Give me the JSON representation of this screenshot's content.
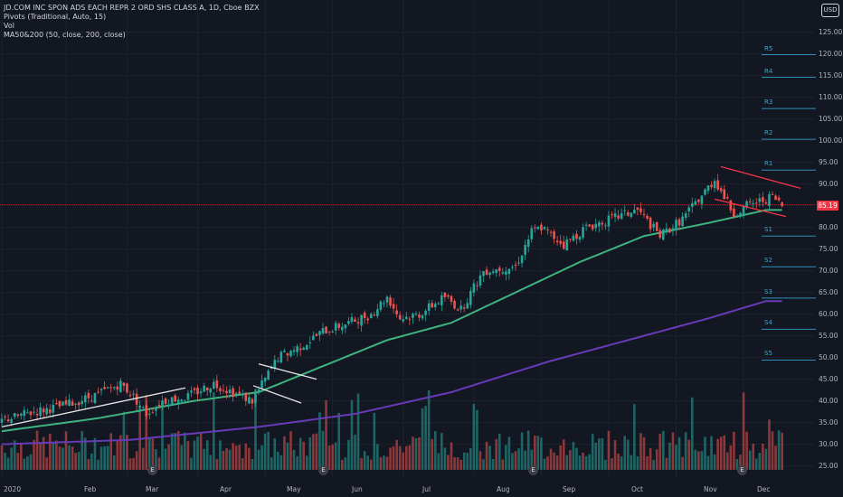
{
  "legend": {
    "title": "JD.COM INC SPON ADS EACH REPR 2 ORD SHS CLASS A, 1D, Cboe BZX",
    "pivots": "Pivots (Traditional, Auto, 15)",
    "vol": "Vol",
    "ma": "MA50&200 (50, close, 200, close)"
  },
  "currency_button": "USD",
  "current_price": "85.19",
  "price_axis": [
    "125.00",
    "120.00",
    "115.00",
    "110.00",
    "105.00",
    "100.00",
    "95.00",
    "90.00",
    "80.00",
    "75.00",
    "70.00",
    "65.00",
    "60.00",
    "55.00",
    "50.00",
    "45.00",
    "40.00",
    "35.00",
    "30.00",
    "25.00"
  ],
  "pivot_labels": [
    {
      "name": "R5",
      "level": 119.8
    },
    {
      "name": "R4",
      "level": 114.6
    },
    {
      "name": "R3",
      "level": 107.4
    },
    {
      "name": "R2",
      "level": 100.3
    },
    {
      "name": "R1",
      "level": 93.2
    },
    {
      "name": "S1",
      "level": 78.0
    },
    {
      "name": "S2",
      "level": 70.9
    },
    {
      "name": "S3",
      "level": 63.7
    },
    {
      "name": "S4",
      "level": 56.5
    },
    {
      "name": "S5",
      "level": 49.4
    }
  ],
  "time_axis": [
    "2020",
    "Feb",
    "Mar",
    "Apr",
    "May",
    "Jun",
    "Jul",
    "Aug",
    "Sep",
    "Oct",
    "Nov",
    "Dec"
  ],
  "earnings_marker": "E",
  "colors": {
    "bg": "#131722",
    "up": "#26a69a",
    "down": "#ef5350",
    "ma50": "#3fb37f",
    "ma200": "#673ab7",
    "pivot": "#2f8fb8",
    "trend_red": "#f23645",
    "trend_white": "#e8e8e8"
  },
  "chart_data": {
    "type": "candlestick",
    "price_range": [
      22,
      130
    ],
    "current_price": 85.19,
    "close_anchors": [
      [
        0,
        35.5
      ],
      [
        10,
        37.5
      ],
      [
        20,
        39
      ],
      [
        30,
        41.5
      ],
      [
        37,
        44
      ],
      [
        41,
        41
      ],
      [
        45,
        37
      ],
      [
        50,
        40
      ],
      [
        58,
        41
      ],
      [
        66,
        44
      ],
      [
        72,
        42
      ],
      [
        78,
        40
      ],
      [
        86,
        50
      ],
      [
        94,
        53
      ],
      [
        100,
        56
      ],
      [
        108,
        58
      ],
      [
        115,
        60
      ],
      [
        120,
        64
      ],
      [
        124,
        59
      ],
      [
        130,
        60
      ],
      [
        138,
        64
      ],
      [
        143,
        61
      ],
      [
        150,
        70
      ],
      [
        160,
        71
      ],
      [
        165,
        79
      ],
      [
        168,
        80
      ],
      [
        175,
        76
      ],
      [
        182,
        80
      ],
      [
        190,
        82
      ],
      [
        198,
        84
      ],
      [
        205,
        78
      ],
      [
        212,
        82
      ],
      [
        222,
        91
      ],
      [
        228,
        83
      ],
      [
        232,
        85
      ],
      [
        240,
        87
      ],
      [
        243,
        85
      ]
    ],
    "ma50_anchors": [
      [
        0,
        33
      ],
      [
        30,
        36
      ],
      [
        45,
        38
      ],
      [
        60,
        40
      ],
      [
        80,
        42
      ],
      [
        100,
        48
      ],
      [
        120,
        54
      ],
      [
        140,
        58
      ],
      [
        160,
        65
      ],
      [
        180,
        72
      ],
      [
        200,
        78
      ],
      [
        220,
        81
      ],
      [
        238,
        84
      ]
    ],
    "ma200_anchors": [
      [
        0,
        30
      ],
      [
        40,
        31
      ],
      [
        80,
        34
      ],
      [
        110,
        37
      ],
      [
        140,
        42
      ],
      [
        170,
        49
      ],
      [
        200,
        55
      ],
      [
        220,
        59
      ],
      [
        238,
        63
      ]
    ],
    "volume_range": [
      0,
      300
    ]
  }
}
